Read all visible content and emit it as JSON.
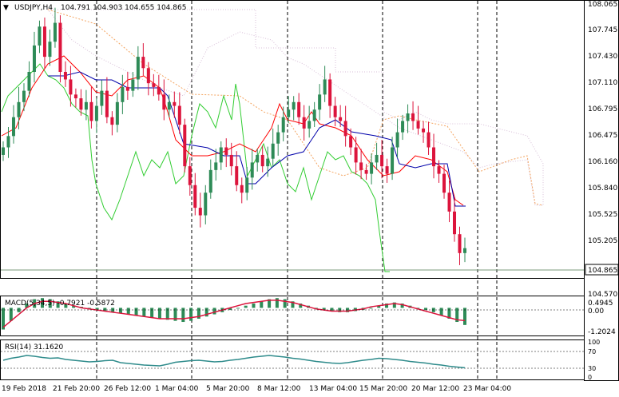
{
  "header": {
    "symbol": "USDJPY,H4",
    "ohlc": "104.791 104.903 104.655 104.865"
  },
  "main_price_axis": {
    "ticks": [
      "108.065",
      "107.745",
      "107.430",
      "107.110",
      "106.795",
      "106.475",
      "106.160",
      "105.840",
      "105.525",
      "105.205",
      "104.865",
      "104.570"
    ],
    "current_price_label": "104.865"
  },
  "macd": {
    "label": "MACD(5,34,5) -0.7921 -0.5872",
    "ticks": [
      "0.4945",
      "0.00",
      "-1.2024"
    ]
  },
  "rsi": {
    "label": "RSI(14) 31.1620",
    "ticks": [
      "100",
      "70",
      "30",
      "0"
    ]
  },
  "time_axis": {
    "labels": [
      "19 Feb 2018",
      "21 Feb 20:00",
      "26 Feb 12:00",
      "1 Mar 04:00",
      "5 Mar 20:00",
      "8 Mar 12:00",
      "13 Mar 04:00",
      "15 Mar 20:00",
      "20 Mar 12:00",
      "23 Mar 04:00"
    ]
  },
  "colors": {
    "bull": "#2e8b57",
    "bear": "#dc143c",
    "tenkan": "#ff0000",
    "kijun": "#0000aa",
    "chikou": "#32cd32",
    "cloud_bull": "#f4a460",
    "cloud_bear": "#d8bfd8",
    "macd_hist": "#2e8b57",
    "macd_signal": "#dc143c",
    "rsi_line": "#2e8b8b",
    "grid": "#000000"
  },
  "chart_data": {
    "type": "candlestick",
    "title": "USDJPY,H4",
    "ylim": [
      104.47,
      108.11
    ],
    "close_series": [
      106.2,
      106.35,
      106.6,
      106.8,
      106.95,
      107.2,
      107.55,
      107.8,
      107.4,
      107.6,
      107.85,
      107.2,
      107.1,
      106.9,
      106.85,
      106.7,
      106.8,
      106.55,
      106.75,
      106.95,
      106.6,
      106.5,
      106.8,
      107.0,
      106.95,
      107.1,
      107.4,
      107.25,
      107.05,
      107.0,
      106.9,
      106.7,
      106.8,
      106.75,
      106.5,
      105.95,
      105.7,
      105.4,
      105.3,
      105.6,
      105.9,
      106.0,
      106.2,
      106.1,
      105.95,
      105.7,
      105.6,
      105.8,
      106.0,
      106.1,
      105.95,
      106.05,
      106.25,
      106.4,
      106.6,
      106.7,
      106.8,
      106.6,
      106.45,
      106.55,
      106.7,
      106.9,
      107.1,
      106.75,
      106.6,
      106.55,
      106.35,
      106.2,
      106.0,
      105.9,
      105.85,
      106.0,
      106.1,
      105.95,
      105.85,
      106.2,
      106.4,
      106.55,
      106.65,
      106.55,
      106.45,
      106.4,
      106.2,
      105.95,
      105.85,
      105.6,
      105.35,
      105.05,
      104.8,
      104.865
    ],
    "macd_values": [
      -1.0,
      -0.6,
      -0.2,
      0.2,
      0.4,
      0.45,
      0.4,
      0.3,
      0.2,
      0.1,
      0.05,
      -0.05,
      -0.1,
      -0.15,
      -0.2,
      -0.25,
      -0.3,
      -0.35,
      -0.4,
      -0.45,
      -0.5,
      -0.55,
      -0.6,
      -0.65,
      -0.6,
      -0.5,
      -0.4,
      -0.3,
      -0.2,
      -0.1,
      0.0,
      0.1,
      0.2,
      0.3,
      0.4,
      0.45,
      0.4,
      0.3,
      0.2,
      0.1,
      0.0,
      -0.1,
      -0.15,
      -0.2,
      -0.2,
      -0.15,
      -0.1,
      0.0,
      0.1,
      0.2,
      0.25,
      0.2,
      0.1,
      0.0,
      -0.1,
      -0.2,
      -0.35,
      -0.5,
      -0.65,
      -0.79
    ],
    "macd_signal_values": [
      -0.9,
      -0.6,
      -0.3,
      0.0,
      0.2,
      0.3,
      0.3,
      0.25,
      0.2,
      0.1,
      0.0,
      -0.05,
      -0.1,
      -0.15,
      -0.2,
      -0.25,
      -0.3,
      -0.35,
      -0.4,
      -0.45,
      -0.5,
      -0.5,
      -0.5,
      -0.5,
      -0.45,
      -0.4,
      -0.3,
      -0.2,
      -0.1,
      0.0,
      0.1,
      0.2,
      0.25,
      0.3,
      0.35,
      0.35,
      0.3,
      0.25,
      0.15,
      0.05,
      -0.05,
      -0.1,
      -0.15,
      -0.15,
      -0.15,
      -0.1,
      -0.05,
      0.05,
      0.1,
      0.15,
      0.2,
      0.15,
      0.05,
      -0.05,
      -0.15,
      -0.25,
      -0.35,
      -0.45,
      -0.55,
      -0.59
    ],
    "rsi_values": [
      50,
      55,
      58,
      62,
      60,
      57,
      55,
      56,
      52,
      50,
      48,
      46,
      47,
      49,
      50,
      44,
      42,
      40,
      38,
      37,
      36,
      40,
      45,
      47,
      49,
      50,
      48,
      46,
      47,
      50,
      52,
      55,
      58,
      60,
      62,
      60,
      58,
      55,
      53,
      50,
      47,
      45,
      43,
      42,
      44,
      47,
      50,
      52,
      55,
      54,
      52,
      50,
      47,
      45,
      43,
      40,
      38,
      35,
      33,
      31.16
    ]
  }
}
